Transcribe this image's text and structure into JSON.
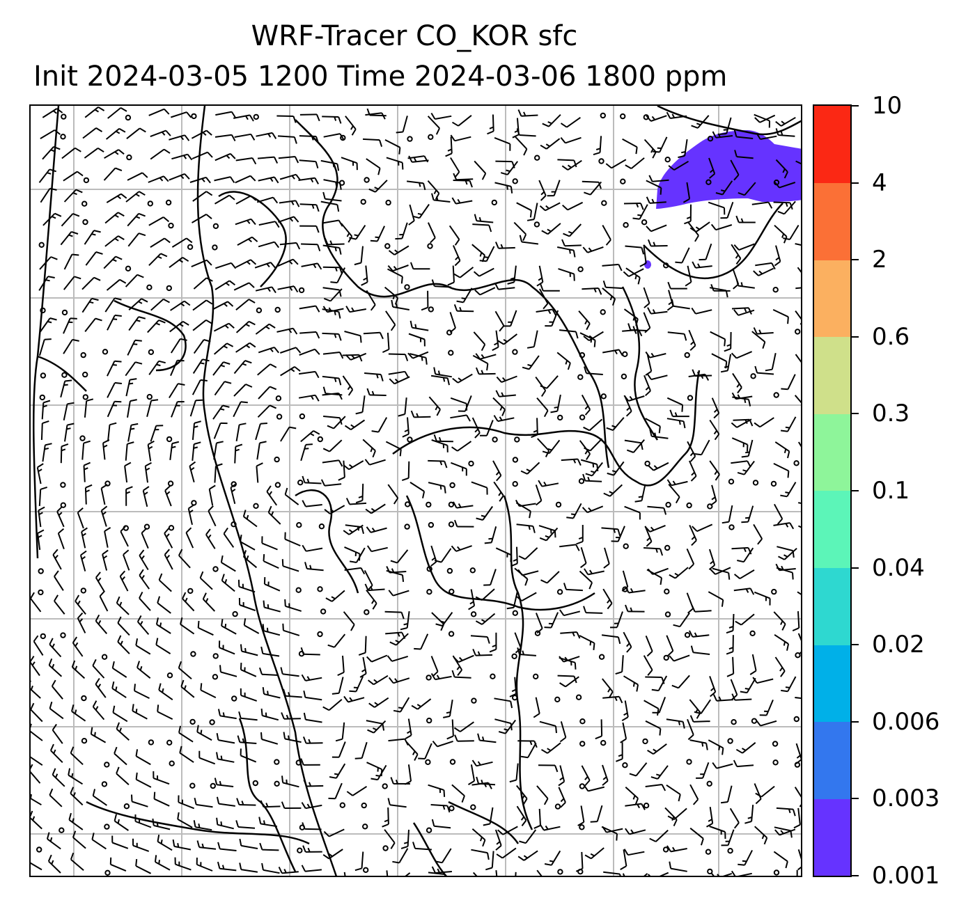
{
  "title": {
    "line1": "WRF-Tracer CO_KOR sfc",
    "line2": "Init 2024-03-05 1200 Time 2024-03-06 1800 ppm"
  },
  "colorbar": {
    "levels": [
      "0.001",
      "0.003",
      "0.006",
      "0.02",
      "0.04",
      "0.1",
      "0.3",
      "0.6",
      "2",
      "4",
      "10"
    ],
    "colors": [
      "#6633ff",
      "#3377ee",
      "#00b0e8",
      "#2ed8d0",
      "#5cf5b8",
      "#8ef59a",
      "#cfe08a",
      "#fbb060",
      "#fb7036",
      "#fb2814"
    ]
  },
  "map": {
    "gridline_color": "#bbbbbb",
    "plume_color": "#6633ff",
    "coast_color": "#000000",
    "barb_color": "#000000"
  }
}
